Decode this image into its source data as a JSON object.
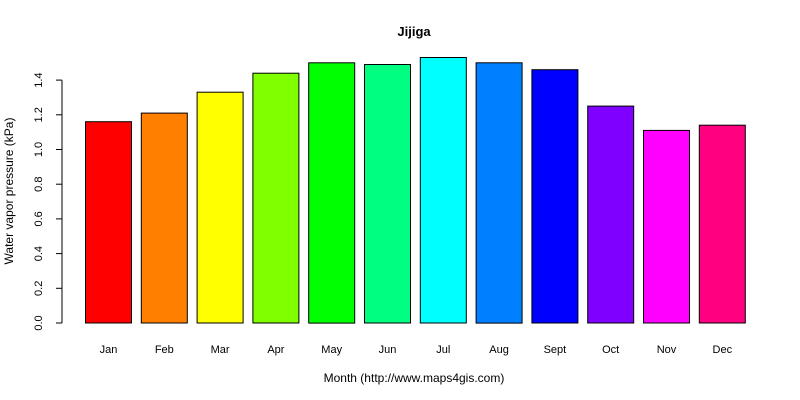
{
  "chart_data": {
    "type": "bar",
    "title": "Jijiga",
    "xlabel": "Month (http://www.maps4gis.com)",
    "ylabel": "Water vapor pressure (kPa)",
    "categories": [
      "Jan",
      "Feb",
      "Mar",
      "Apr",
      "May",
      "Jun",
      "Jul",
      "Aug",
      "Sept",
      "Oct",
      "Nov",
      "Dec"
    ],
    "values": [
      1.16,
      1.21,
      1.33,
      1.44,
      1.5,
      1.49,
      1.53,
      1.5,
      1.46,
      1.25,
      1.11,
      1.14
    ],
    "colors": [
      "#ff0000",
      "#ff8000",
      "#ffff00",
      "#80ff00",
      "#00ff00",
      "#00ff80",
      "#00ffff",
      "#0080ff",
      "#0000ff",
      "#8000ff",
      "#ff00ff",
      "#ff0080"
    ],
    "ylim": [
      0,
      1.53
    ],
    "yticks": [
      "0.0",
      "0.2",
      "0.4",
      "0.6",
      "0.8",
      "1.0",
      "1.2",
      "1.4"
    ],
    "grid": false,
    "legend": "none"
  }
}
